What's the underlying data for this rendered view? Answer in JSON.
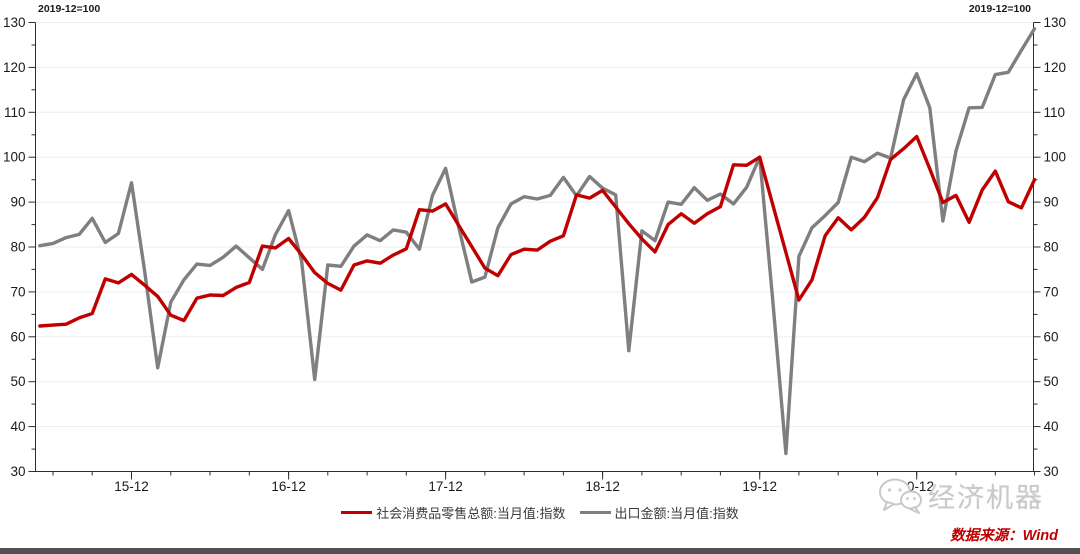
{
  "page": {
    "annotation_left": "2019-12=100",
    "annotation_right": "2019-12=100",
    "source_text": "数据来源：Wind",
    "watermark_text": "经济机器"
  },
  "chart_data": {
    "type": "line",
    "title": "",
    "index_note": "2019-12=100",
    "grid": "horizontal-light",
    "legend_position": "bottom-center",
    "x": [
      "2015-05",
      "2015-06",
      "2015-07",
      "2015-08",
      "2015-09",
      "2015-10",
      "2015-11",
      "2015-12",
      "2016-01",
      "2016-02",
      "2016-03",
      "2016-04",
      "2016-05",
      "2016-06",
      "2016-07",
      "2016-08",
      "2016-09",
      "2016-10",
      "2016-11",
      "2016-12",
      "2017-01",
      "2017-02",
      "2017-03",
      "2017-04",
      "2017-05",
      "2017-06",
      "2017-07",
      "2017-08",
      "2017-09",
      "2017-10",
      "2017-11",
      "2017-12",
      "2018-01",
      "2018-02",
      "2018-03",
      "2018-04",
      "2018-05",
      "2018-06",
      "2018-07",
      "2018-08",
      "2018-09",
      "2018-10",
      "2018-11",
      "2018-12",
      "2019-01",
      "2019-02",
      "2019-03",
      "2019-04",
      "2019-05",
      "2019-06",
      "2019-07",
      "2019-08",
      "2019-09",
      "2019-10",
      "2019-11",
      "2019-12",
      "2020-01",
      "2020-02",
      "2020-03",
      "2020-04",
      "2020-05",
      "2020-06",
      "2020-07",
      "2020-08",
      "2020-09",
      "2020-10",
      "2020-11",
      "2020-12",
      "2021-01",
      "2021-02",
      "2021-03",
      "2021-04",
      "2021-05",
      "2021-06",
      "2021-07",
      "2021-08",
      "2021-09"
    ],
    "x_axis": {
      "major_ticks": [
        {
          "index": 7,
          "label": "15-12"
        },
        {
          "index": 19,
          "label": "16-12"
        },
        {
          "index": 31,
          "label": "17-12"
        },
        {
          "index": 43,
          "label": "18-12"
        },
        {
          "index": 55,
          "label": "19-12"
        },
        {
          "index": 67,
          "label": "20-12"
        }
      ],
      "minor_tick_every_months": 3
    },
    "y_axis": {
      "min": 30,
      "max": 130,
      "major_step": 10,
      "minor_step": 5,
      "sides": "both"
    },
    "series": [
      {
        "name": "社会消费品零售总额:当月值:指数",
        "color": "#c00000",
        "values": [
          62.4,
          62.6,
          62.8,
          64.2,
          65.2,
          72.9,
          72.0,
          73.9,
          71.5,
          69.0,
          64.8,
          63.6,
          68.6,
          69.3,
          69.2,
          71.0,
          72.1,
          80.2,
          79.8,
          81.9,
          78.3,
          74.3,
          71.9,
          70.4,
          76.0,
          76.9,
          76.4,
          78.2,
          79.6,
          88.3,
          88.0,
          89.6,
          84.8,
          80.1,
          75.3,
          73.6,
          78.3,
          79.5,
          79.3,
          81.3,
          82.5,
          91.6,
          90.9,
          92.6,
          88.9,
          85.2,
          81.8,
          78.9,
          85.0,
          87.4,
          85.3,
          87.4,
          89.0,
          98.3,
          98.2,
          100.0,
          89.4,
          78.8,
          68.2,
          72.7,
          82.5,
          86.5,
          83.8,
          86.6,
          91.0,
          99.5,
          101.9,
          104.6,
          97.4,
          89.9,
          91.5,
          85.5,
          92.7,
          96.9,
          90.1,
          88.7,
          95.0
        ]
      },
      {
        "name": "出口金额:当月值:指数",
        "color": "#7f7f7f",
        "values": [
          80.3,
          80.8,
          82.1,
          82.8,
          86.4,
          81.0,
          83.0,
          94.3,
          74.7,
          53.1,
          67.7,
          72.7,
          76.2,
          75.9,
          77.7,
          80.2,
          77.6,
          75.0,
          82.8,
          88.1,
          76.9,
          50.5,
          76.0,
          75.7,
          80.2,
          82.7,
          81.4,
          83.8,
          83.3,
          79.5,
          91.5,
          97.5,
          84.4,
          72.2,
          73.3,
          84.3,
          89.6,
          91.2,
          90.7,
          91.5,
          95.5,
          91.4,
          95.7,
          93.1,
          91.6,
          56.9,
          83.6,
          81.4,
          90.0,
          89.5,
          93.2,
          90.4,
          91.8,
          89.6,
          93.3,
          100.0,
          68.0,
          34.0,
          77.9,
          84.3,
          87.0,
          89.9,
          100.0,
          99.0,
          100.9,
          99.8,
          112.8,
          118.6,
          111.0,
          85.8,
          101.4,
          111.0,
          111.1,
          118.4,
          118.9,
          123.8,
          128.6
        ]
      }
    ],
    "colors": {
      "grid": "#ededed",
      "axis": "#2e2e2e",
      "tick_label": "#1a1a1a"
    }
  }
}
